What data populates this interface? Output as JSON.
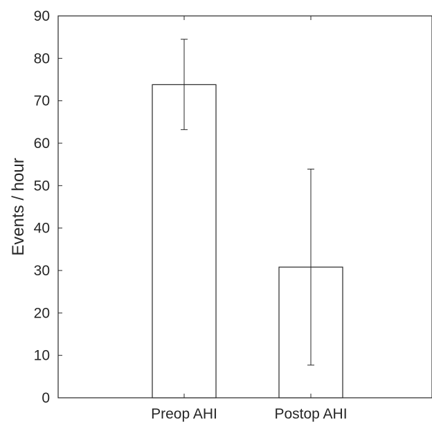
{
  "chart_data": {
    "type": "bar",
    "categories": [
      "Preop AHI",
      "Postop AHI"
    ],
    "values": [
      73.8,
      30.8
    ],
    "error_bars": {
      "lower": [
        63.2,
        7.7
      ],
      "upper": [
        84.5,
        53.9
      ]
    },
    "title": "",
    "xlabel": "",
    "ylabel": "Events / hour",
    "ylim": [
      0,
      90
    ],
    "yticks": [
      0,
      10,
      20,
      30,
      40,
      50,
      60,
      70,
      80,
      90
    ],
    "grid": false,
    "legend": "none",
    "bar_fill": "#ffffff",
    "bar_edge": "#262626",
    "axis_color": "#262626"
  }
}
